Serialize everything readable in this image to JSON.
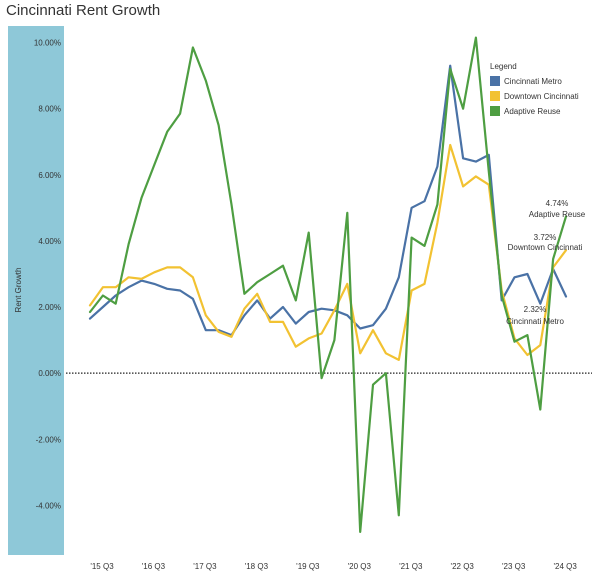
{
  "page": {
    "title": "Cincinnati Rent Growth"
  },
  "chart_data": {
    "type": "line",
    "title": "Cincinnati Rent Growth",
    "xlabel": "",
    "ylabel": "Rent Growth",
    "ylim": [
      -5.5,
      10.5
    ],
    "yticks": [
      10,
      8,
      6,
      4,
      2,
      0,
      -2,
      -4
    ],
    "ytick_labels": [
      "10.00%",
      "8.00%",
      "6.00%",
      "4.00%",
      "2.00%",
      "0.00%",
      "-2.00%",
      "-4.00%"
    ],
    "x_count": 38,
    "xtick_labels": [
      {
        "label": "'15 Q3",
        "index": 0
      },
      {
        "label": "'16 Q3",
        "index": 4
      },
      {
        "label": "'17 Q3",
        "index": 8
      },
      {
        "label": "'18 Q3",
        "index": 12
      },
      {
        "label": "'19 Q3",
        "index": 16
      },
      {
        "label": "'20 Q3",
        "index": 20
      },
      {
        "label": "'21 Q3",
        "index": 24
      },
      {
        "label": "'22 Q3",
        "index": 28
      },
      {
        "label": "'23 Q3",
        "index": 32
      },
      {
        "label": "'24 Q3",
        "index": 36
      }
    ],
    "zero_line": true,
    "legend": {
      "title": "Legend",
      "position": "top-right"
    },
    "series": [
      {
        "name": "Cincinnati Metro",
        "color": "#4a72a6",
        "values": [
          1.65,
          2.0,
          2.35,
          2.6,
          2.8,
          2.7,
          2.55,
          2.5,
          2.25,
          1.3,
          1.3,
          1.15,
          1.75,
          2.2,
          1.65,
          2.0,
          1.5,
          1.85,
          1.95,
          1.9,
          1.75,
          1.35,
          1.45,
          1.95,
          2.9,
          5.0,
          5.2,
          6.25,
          9.3,
          6.5,
          6.4,
          6.6,
          2.2,
          2.9,
          3.0,
          2.1,
          3.15,
          2.32
        ],
        "end_label": "2.32%",
        "end_sublabel": "Cincinnati Metro"
      },
      {
        "name": "Downtown Cincinnati",
        "color": "#f2c232",
        "values": [
          2.05,
          2.6,
          2.6,
          2.9,
          2.85,
          3.05,
          3.2,
          3.2,
          2.9,
          1.75,
          1.25,
          1.1,
          1.95,
          2.4,
          1.55,
          1.55,
          0.8,
          1.05,
          1.2,
          1.9,
          2.7,
          0.6,
          1.3,
          0.6,
          0.4,
          2.5,
          2.7,
          4.55,
          6.9,
          5.65,
          5.95,
          5.7,
          2.5,
          1.05,
          0.55,
          0.85,
          3.2,
          3.72
        ],
        "end_label": "3.72%",
        "end_sublabel": "Downtown Cincinnati"
      },
      {
        "name": "Adaptive Reuse",
        "color": "#4e9e42",
        "values": [
          1.85,
          2.35,
          2.1,
          3.9,
          5.3,
          6.3,
          7.3,
          7.85,
          9.85,
          8.85,
          7.5,
          5.1,
          2.4,
          2.75,
          3.0,
          3.25,
          2.2,
          4.25,
          -0.15,
          1.0,
          4.85,
          -4.8,
          -0.35,
          0.0,
          -4.3,
          4.1,
          3.85,
          5.1,
          9.2,
          8.0,
          10.15,
          6.1,
          2.35,
          0.95,
          1.15,
          -1.1,
          3.45,
          4.74
        ],
        "end_label": "4.74%",
        "end_sublabel": "Adaptive Reuse"
      }
    ]
  }
}
